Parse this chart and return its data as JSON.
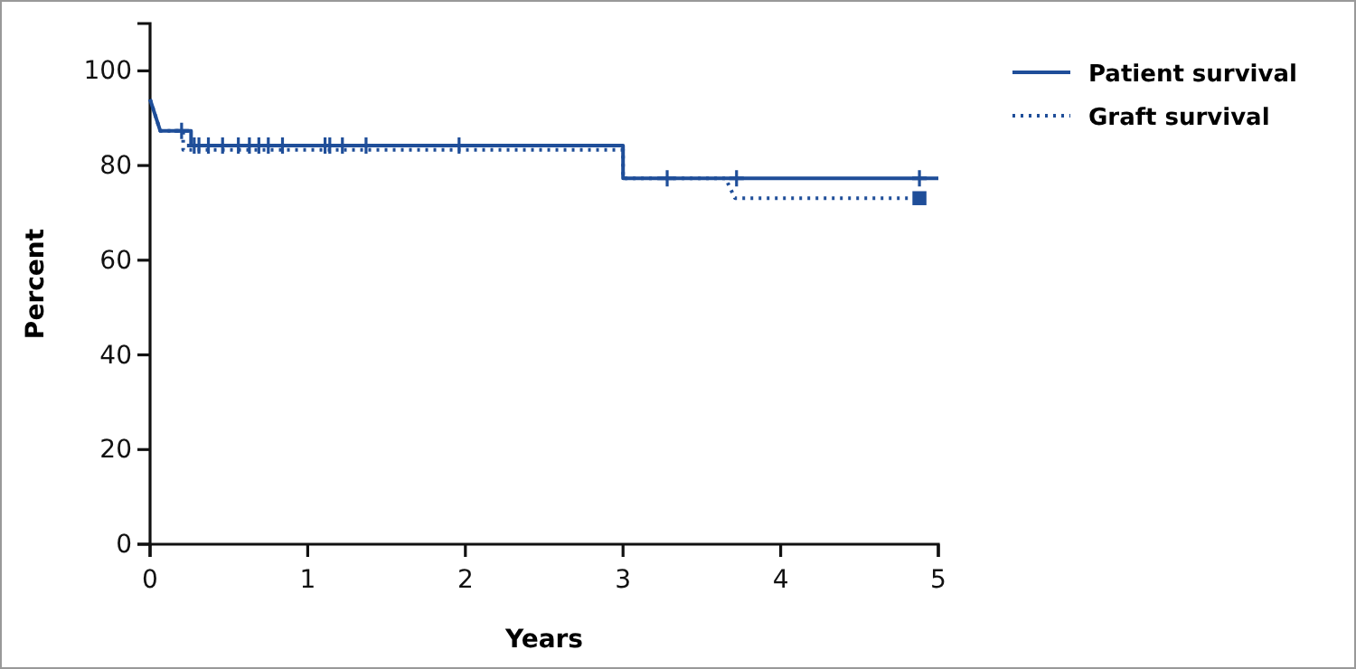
{
  "chart_data": {
    "type": "line",
    "xlabel": "Years",
    "ylabel": "Percent",
    "xlim": [
      0,
      5
    ],
    "ylim": [
      0,
      110
    ],
    "xticks": [
      0,
      1,
      2,
      3,
      4,
      5
    ],
    "yticks": [
      0,
      20,
      40,
      60,
      80,
      100
    ],
    "legend": "top right",
    "grid": false,
    "series": [
      {
        "name": "Patient survival",
        "color": "#1f4e99",
        "line_style": "solid",
        "x": [
          0,
          0.065,
          0.26,
          0.26,
          3,
          3,
          5
        ],
        "values": [
          94,
          87.3,
          87.3,
          84.2,
          84.2,
          77.3,
          77.3
        ]
      },
      {
        "name": "Graft survival",
        "color": "#1f4e99",
        "line_style": "dotted",
        "x": [
          0,
          0.065,
          0.21,
          0.21,
          3,
          3,
          3.65,
          3.71,
          4.93
        ],
        "values": [
          94,
          87.3,
          87.3,
          83.3,
          83.3,
          77.3,
          77.3,
          73.1,
          73.1
        ]
      },
      {
        "type": "scatter",
        "color": "#1f4e99",
        "marker": "cross",
        "x": [
          0.2,
          0.28,
          0.31,
          0.37,
          0.46,
          0.56,
          0.63,
          0.69,
          0.75,
          0.84,
          1.11,
          1.14,
          1.22,
          1.37,
          1.96,
          3.28,
          3.72,
          4.88
        ],
        "values": [
          87.3,
          84.2,
          84.2,
          84.2,
          84.2,
          84.2,
          84.2,
          84.2,
          84.2,
          84.2,
          84.2,
          84.2,
          84.2,
          84.2,
          84.2,
          77.3,
          77.3,
          77.3
        ]
      },
      {
        "type": "scatter",
        "color": "#1f4e99",
        "marker": "square",
        "x": [
          4.88
        ],
        "values": [
          73.1
        ]
      }
    ]
  }
}
